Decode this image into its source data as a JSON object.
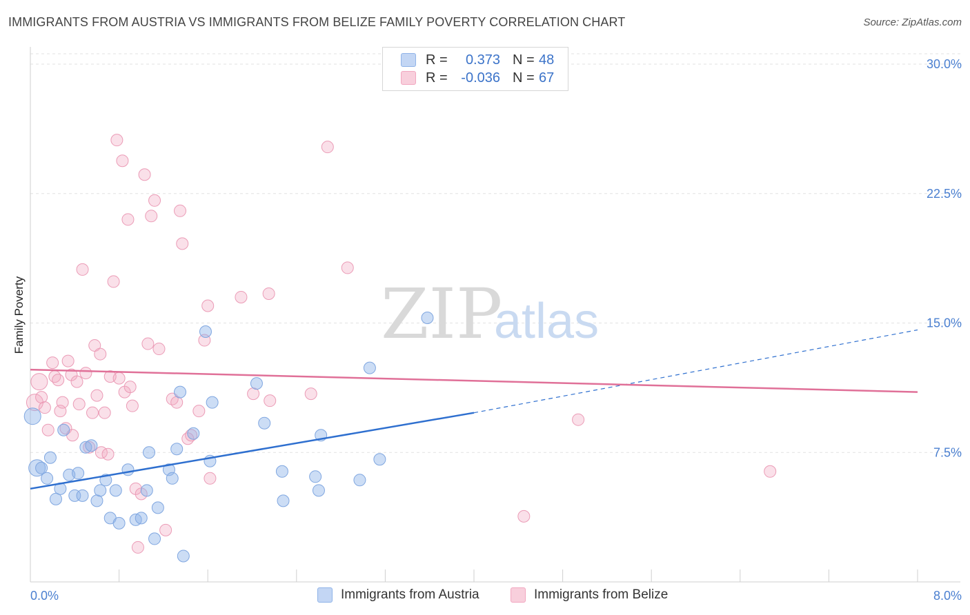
{
  "title": "IMMIGRANTS FROM AUSTRIA VS IMMIGRANTS FROM BELIZE FAMILY POVERTY CORRELATION CHART",
  "source": "Source: ZipAtlas.com",
  "watermark": {
    "zip": "ZIP",
    "atlas": "atlas"
  },
  "legend": {
    "austria": {
      "r_label": "R =",
      "r_value": "0.373",
      "n_label": "N =",
      "n_value": "48"
    },
    "belize": {
      "r_label": "R =",
      "r_value": "-0.036",
      "n_label": "N =",
      "n_value": "67"
    }
  },
  "chart_data": {
    "type": "scatter",
    "title": "IMMIGRANTS FROM AUSTRIA VS IMMIGRANTS FROM BELIZE FAMILY POVERTY CORRELATION CHART",
    "xlabel": "",
    "ylabel": "Family Poverty",
    "xlim": [
      0,
      8.0
    ],
    "ylim": [
      0,
      30.8
    ],
    "x_tick_labels": [
      "0.0%",
      "8.0%"
    ],
    "y_ticks": [
      7.5,
      15.0,
      22.5,
      30.0
    ],
    "y_tick_labels": [
      "7.5%",
      "15.0%",
      "22.5%",
      "30.0%"
    ],
    "grid": true,
    "colors": {
      "austria": "#8fb3e8",
      "austria_line": "#2e6fcf",
      "belize": "#f2a6bf",
      "belize_line": "#e07098"
    },
    "series": [
      {
        "name": "Immigrants from Austria",
        "trend": {
          "x0": 0.0,
          "y0": 5.4,
          "x1": 4.0,
          "y1": 9.8,
          "dashed_to_x": 8.0,
          "dashed_to_y": 14.6
        },
        "points": [
          {
            "x": 0.02,
            "y": 9.6,
            "big": true
          },
          {
            "x": 0.06,
            "y": 6.6,
            "big": true
          },
          {
            "x": 0.1,
            "y": 6.6
          },
          {
            "x": 0.15,
            "y": 6.0
          },
          {
            "x": 0.18,
            "y": 7.2
          },
          {
            "x": 0.23,
            "y": 4.8
          },
          {
            "x": 0.27,
            "y": 5.4
          },
          {
            "x": 0.3,
            "y": 8.8
          },
          {
            "x": 0.35,
            "y": 6.2
          },
          {
            "x": 0.4,
            "y": 5.0
          },
          {
            "x": 0.43,
            "y": 6.3
          },
          {
            "x": 0.47,
            "y": 5.0
          },
          {
            "x": 0.5,
            "y": 7.8
          },
          {
            "x": 0.55,
            "y": 7.9
          },
          {
            "x": 0.6,
            "y": 4.7
          },
          {
            "x": 0.63,
            "y": 5.3
          },
          {
            "x": 0.68,
            "y": 5.9
          },
          {
            "x": 0.72,
            "y": 3.7
          },
          {
            "x": 0.77,
            "y": 5.3
          },
          {
            "x": 0.8,
            "y": 3.4
          },
          {
            "x": 0.88,
            "y": 6.5
          },
          {
            "x": 0.95,
            "y": 3.6
          },
          {
            "x": 1.0,
            "y": 3.7
          },
          {
            "x": 1.05,
            "y": 5.3
          },
          {
            "x": 1.07,
            "y": 7.5
          },
          {
            "x": 1.12,
            "y": 2.5
          },
          {
            "x": 1.15,
            "y": 4.3
          },
          {
            "x": 1.25,
            "y": 6.5
          },
          {
            "x": 1.28,
            "y": 6.0
          },
          {
            "x": 1.32,
            "y": 7.7
          },
          {
            "x": 1.35,
            "y": 11.0
          },
          {
            "x": 1.38,
            "y": 1.5
          },
          {
            "x": 1.47,
            "y": 8.6
          },
          {
            "x": 1.58,
            "y": 14.5
          },
          {
            "x": 1.62,
            "y": 7.0
          },
          {
            "x": 1.64,
            "y": 10.4
          },
          {
            "x": 2.04,
            "y": 11.5
          },
          {
            "x": 2.11,
            "y": 9.2
          },
          {
            "x": 2.27,
            "y": 6.4
          },
          {
            "x": 2.28,
            "y": 4.7
          },
          {
            "x": 2.57,
            "y": 6.1
          },
          {
            "x": 2.6,
            "y": 5.3
          },
          {
            "x": 2.62,
            "y": 8.5
          },
          {
            "x": 2.97,
            "y": 5.9
          },
          {
            "x": 3.06,
            "y": 12.4
          },
          {
            "x": 3.15,
            "y": 7.1
          },
          {
            "x": 3.58,
            "y": 15.3
          }
        ]
      },
      {
        "name": "Immigrants from Belize",
        "trend": {
          "x0": 0.0,
          "y0": 12.3,
          "x1": 8.0,
          "y1": 11.0
        },
        "points": [
          {
            "x": 0.04,
            "y": 10.4,
            "big": true
          },
          {
            "x": 0.08,
            "y": 11.6,
            "big": true
          },
          {
            "x": 0.1,
            "y": 10.7
          },
          {
            "x": 0.13,
            "y": 10.1
          },
          {
            "x": 0.16,
            "y": 8.8
          },
          {
            "x": 0.2,
            "y": 12.7
          },
          {
            "x": 0.22,
            "y": 11.9
          },
          {
            "x": 0.25,
            "y": 11.7
          },
          {
            "x": 0.27,
            "y": 9.9
          },
          {
            "x": 0.29,
            "y": 10.4
          },
          {
            "x": 0.32,
            "y": 8.9
          },
          {
            "x": 0.34,
            "y": 12.8
          },
          {
            "x": 0.37,
            "y": 12.0
          },
          {
            "x": 0.38,
            "y": 8.5
          },
          {
            "x": 0.42,
            "y": 11.6
          },
          {
            "x": 0.44,
            "y": 10.3
          },
          {
            "x": 0.47,
            "y": 18.1
          },
          {
            "x": 0.5,
            "y": 12.1
          },
          {
            "x": 0.53,
            "y": 7.8
          },
          {
            "x": 0.56,
            "y": 9.8
          },
          {
            "x": 0.58,
            "y": 13.7
          },
          {
            "x": 0.6,
            "y": 10.8
          },
          {
            "x": 0.63,
            "y": 13.2
          },
          {
            "x": 0.64,
            "y": 7.5
          },
          {
            "x": 0.67,
            "y": 9.8
          },
          {
            "x": 0.7,
            "y": 7.4
          },
          {
            "x": 0.72,
            "y": 11.9
          },
          {
            "x": 0.75,
            "y": 17.4
          },
          {
            "x": 0.78,
            "y": 25.6
          },
          {
            "x": 0.8,
            "y": 11.8
          },
          {
            "x": 0.83,
            "y": 24.4
          },
          {
            "x": 0.85,
            "y": 11.0
          },
          {
            "x": 0.88,
            "y": 21.0
          },
          {
            "x": 0.9,
            "y": 11.3
          },
          {
            "x": 0.92,
            "y": 10.2
          },
          {
            "x": 0.95,
            "y": 5.4
          },
          {
            "x": 0.97,
            "y": 2.0
          },
          {
            "x": 1.0,
            "y": 5.1
          },
          {
            "x": 1.03,
            "y": 23.6
          },
          {
            "x": 1.06,
            "y": 13.8
          },
          {
            "x": 1.09,
            "y": 21.2
          },
          {
            "x": 1.12,
            "y": 22.1
          },
          {
            "x": 1.16,
            "y": 13.5
          },
          {
            "x": 1.22,
            "y": 3.0
          },
          {
            "x": 1.28,
            "y": 10.6
          },
          {
            "x": 1.32,
            "y": 10.4
          },
          {
            "x": 1.35,
            "y": 21.5
          },
          {
            "x": 1.37,
            "y": 19.6
          },
          {
            "x": 1.42,
            "y": 8.3
          },
          {
            "x": 1.45,
            "y": 8.5
          },
          {
            "x": 1.52,
            "y": 9.9
          },
          {
            "x": 1.57,
            "y": 14.0
          },
          {
            "x": 1.6,
            "y": 16.0
          },
          {
            "x": 1.62,
            "y": 6.0
          },
          {
            "x": 1.9,
            "y": 16.5
          },
          {
            "x": 2.01,
            "y": 10.9
          },
          {
            "x": 2.15,
            "y": 16.7
          },
          {
            "x": 2.16,
            "y": 10.5
          },
          {
            "x": 2.53,
            "y": 10.9
          },
          {
            "x": 2.68,
            "y": 25.2
          },
          {
            "x": 2.86,
            "y": 18.2
          },
          {
            "x": 4.45,
            "y": 3.8
          },
          {
            "x": 4.94,
            "y": 9.4
          },
          {
            "x": 6.67,
            "y": 6.4
          }
        ]
      }
    ]
  }
}
